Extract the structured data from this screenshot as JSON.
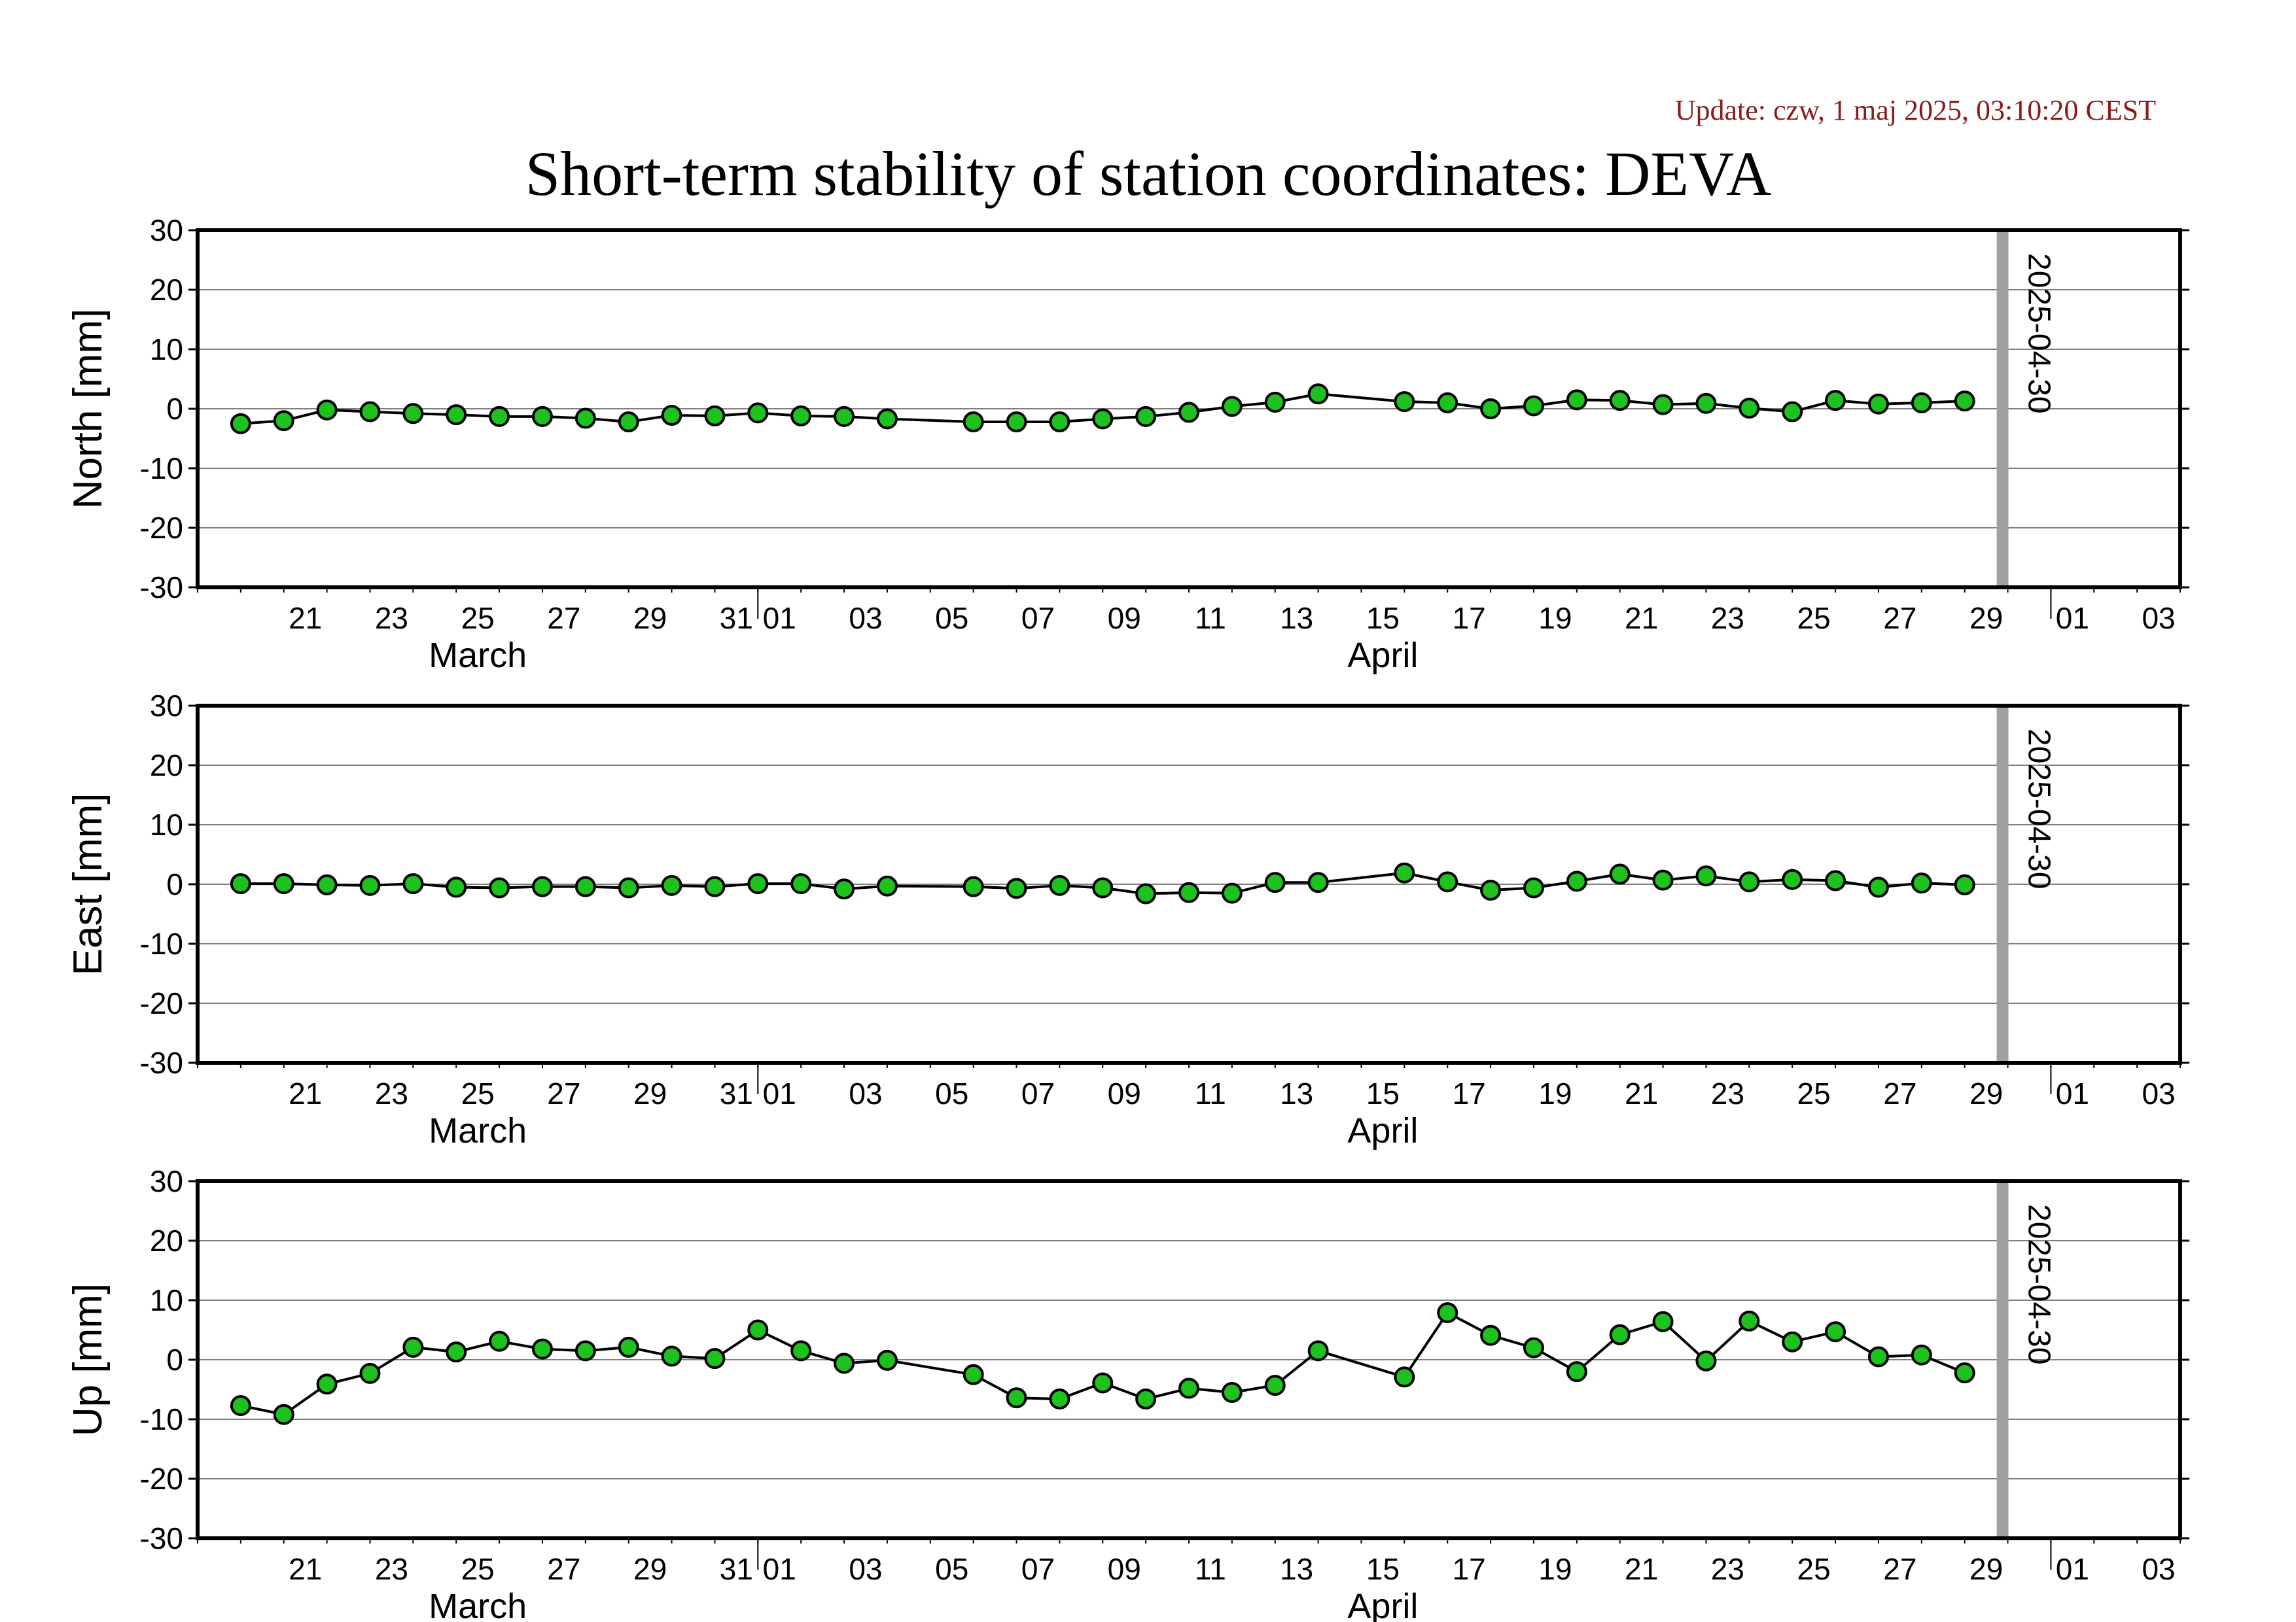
{
  "header": {
    "update": "Update: czw, 1 maj 2025, 03:10:20 CEST",
    "title": "Short-term stability of station coordinates: DEVA"
  },
  "chart_data": {
    "type": "line",
    "x_axis": {
      "range": [
        "2025-03-19",
        "2025-05-04"
      ],
      "tick_labels": [
        "21",
        "23",
        "25",
        "27",
        "29",
        "31",
        "01",
        "03",
        "05",
        "07",
        "09",
        "11",
        "13",
        "15",
        "17",
        "19",
        "21",
        "23",
        "25",
        "27",
        "29",
        "01",
        "03"
      ],
      "months": [
        "March",
        "April"
      ]
    },
    "marker": {
      "date": "2025-04-30",
      "label": "2025-04-30",
      "color": "#a0a0a0"
    },
    "series_style": {
      "line": "#000000",
      "point_fill": "#1ec21e",
      "point_stroke": "#000000"
    },
    "dates": [
      "2025-03-20",
      "2025-03-21",
      "2025-03-22",
      "2025-03-23",
      "2025-03-24",
      "2025-03-25",
      "2025-03-26",
      "2025-03-27",
      "2025-03-28",
      "2025-03-29",
      "2025-03-30",
      "2025-03-31",
      "2025-04-01",
      "2025-04-02",
      "2025-04-03",
      "2025-04-04",
      "2025-04-06",
      "2025-04-07",
      "2025-04-08",
      "2025-04-09",
      "2025-04-10",
      "2025-04-11",
      "2025-04-12",
      "2025-04-13",
      "2025-04-14",
      "2025-04-16",
      "2025-04-17",
      "2025-04-18",
      "2025-04-19",
      "2025-04-20",
      "2025-04-21",
      "2025-04-22",
      "2025-04-23",
      "2025-04-24",
      "2025-04-25",
      "2025-04-26",
      "2025-04-27",
      "2025-04-28",
      "2025-04-29"
    ],
    "panels": [
      {
        "name": "North",
        "ylabel": "North [mm]",
        "ylim": [
          -30,
          30
        ],
        "yticks": [
          30,
          20,
          10,
          0,
          -10,
          -20,
          -30
        ],
        "values": [
          -2.5,
          -2.0,
          -0.2,
          -0.5,
          -0.8,
          -1.0,
          -1.3,
          -1.3,
          -1.6,
          -2.2,
          -1.1,
          -1.2,
          -0.7,
          -1.2,
          -1.3,
          -1.7,
          -2.2,
          -2.2,
          -2.2,
          -1.7,
          -1.3,
          -0.6,
          0.4,
          1.1,
          2.5,
          1.2,
          1.0,
          0.0,
          0.5,
          1.5,
          1.4,
          0.7,
          0.9,
          0.1,
          -0.5,
          1.4,
          0.8,
          1.0,
          1.3
        ]
      },
      {
        "name": "East",
        "ylabel": "East [mm]",
        "ylim": [
          -30,
          30
        ],
        "yticks": [
          30,
          20,
          10,
          0,
          -10,
          -20,
          -30
        ],
        "values": [
          0.1,
          0.1,
          -0.1,
          -0.2,
          0.1,
          -0.5,
          -0.6,
          -0.4,
          -0.4,
          -0.6,
          -0.2,
          -0.4,
          0.1,
          0.1,
          -0.8,
          -0.3,
          -0.4,
          -0.7,
          -0.2,
          -0.6,
          -1.6,
          -1.4,
          -1.5,
          0.3,
          0.3,
          1.9,
          0.4,
          -1.0,
          -0.6,
          0.5,
          1.7,
          0.7,
          1.4,
          0.4,
          0.8,
          0.6,
          -0.5,
          0.2,
          -0.1
        ]
      },
      {
        "name": "Up",
        "ylabel": "Up [mm]",
        "ylim": [
          -30,
          30
        ],
        "yticks": [
          30,
          20,
          10,
          0,
          -10,
          -20,
          -30
        ],
        "values": [
          -7.7,
          -9.2,
          -4.1,
          -2.3,
          2.1,
          1.3,
          3.1,
          1.8,
          1.5,
          2.1,
          0.6,
          0.2,
          5.0,
          1.5,
          -0.6,
          -0.1,
          -2.5,
          -6.4,
          -6.6,
          -3.9,
          -6.6,
          -4.8,
          -5.5,
          -4.3,
          1.5,
          -2.9,
          7.9,
          4.1,
          2.0,
          -2.0,
          4.2,
          6.4,
          -0.2,
          6.5,
          3.0,
          4.7,
          0.5,
          0.8,
          -2.2
        ]
      }
    ]
  }
}
